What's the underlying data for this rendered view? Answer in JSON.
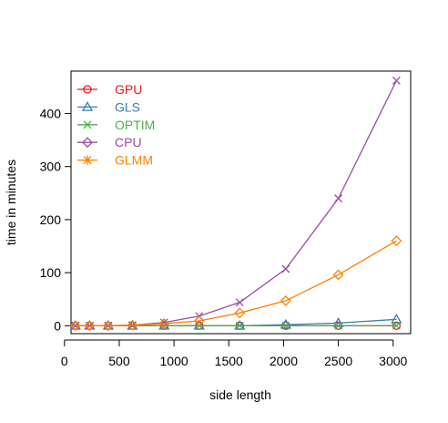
{
  "chart_data": {
    "type": "line",
    "xlabel": "side length",
    "ylabel": "time in minutes",
    "xlim": [
      60,
      3160
    ],
    "ylim": [
      -15,
      480
    ],
    "x_ticks": [
      0,
      500,
      1000,
      1500,
      2000,
      2500,
      3000
    ],
    "y_ticks": [
      0,
      100,
      200,
      300,
      400
    ],
    "x_tick_labels": [
      "0",
      "500",
      "1000",
      "1500",
      "2000",
      "2500",
      "3000"
    ],
    "y_tick_labels": [
      "0",
      "100",
      "200",
      "300",
      "400"
    ],
    "legend_position": "top-left",
    "x": [
      100,
      230,
      400,
      620,
      910,
      1230,
      1600,
      2020,
      2500,
      3030
    ],
    "series": [
      {
        "name": "GPU",
        "color": "#e41a1c",
        "marker": "circle",
        "values": [
          0,
          0,
          0,
          0,
          0,
          0,
          0,
          0,
          0,
          0
        ]
      },
      {
        "name": "GLS",
        "color": "#377eb8",
        "marker": "triangle",
        "values": [
          0,
          0,
          0,
          0,
          0,
          0,
          0,
          2,
          5,
          12
        ]
      },
      {
        "name": "OPTIM",
        "color": "#4daf4a",
        "marker": "x",
        "values": [
          0,
          0,
          0,
          0,
          0,
          0,
          0,
          0,
          0,
          0
        ]
      },
      {
        "name": "CPU",
        "color": "#984ea3",
        "marker": "diamond",
        "line_marker": "x",
        "values": [
          0,
          0,
          0,
          1,
          6,
          18,
          44,
          107,
          240,
          462
        ]
      },
      {
        "name": "GLMM",
        "color": "#ff7f00",
        "marker": "asterisk",
        "line_marker": "diamond",
        "values": [
          0,
          0,
          0,
          1,
          4,
          9,
          24,
          47,
          96,
          160
        ]
      }
    ]
  }
}
